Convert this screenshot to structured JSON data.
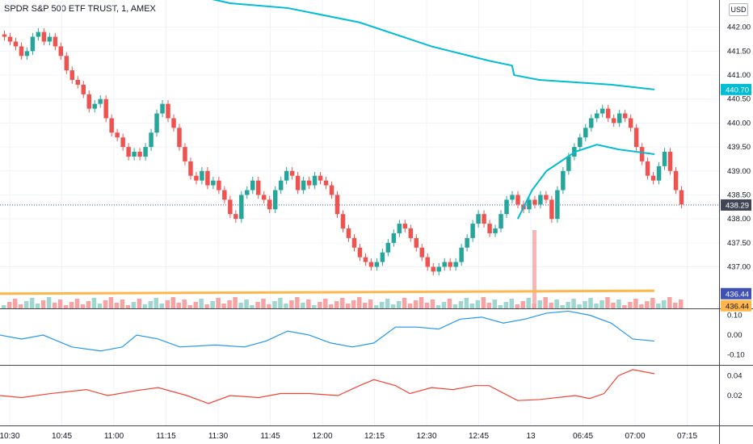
{
  "header": {
    "title": "SPDR S&P 500 ETF TRUST, 1, AMEX",
    "currency": "USD"
  },
  "colors": {
    "up": "#26a69a",
    "down": "#ef5350",
    "volume_up": "#9fd6cf",
    "volume_down": "#f5a3a3",
    "ma": "#00bcd4",
    "support": "#ffb74d",
    "osc1": "#2196f3",
    "osc2": "#f44336",
    "last_price_line": "#3f51b5"
  },
  "chart_data": {
    "type": "candlestick",
    "x_axis": {
      "labels": [
        "10:30",
        "10:45",
        "11:00",
        "11:15",
        "11:30",
        "11:45",
        "12:00",
        "12:15",
        "12:30",
        "12:45",
        "13",
        "06:45",
        "07:00",
        "07:15"
      ]
    },
    "price_axis": {
      "ticks": [
        "437.00",
        "437.50",
        "438.00",
        "438.50",
        "439.00",
        "439.50",
        "440.00",
        "440.50",
        "441.00",
        "441.50",
        "442.00"
      ],
      "range": [
        436.2,
        442.5
      ]
    },
    "price_labels": {
      "ma_value": "440.70",
      "last_price": "438.29",
      "support_a": "436.44",
      "support_b": "436.44"
    },
    "candles_close": [
      441.8,
      441.7,
      441.6,
      441.4,
      441.5,
      441.8,
      441.9,
      441.7,
      441.8,
      441.6,
      441.4,
      441.1,
      440.9,
      440.8,
      440.6,
      440.3,
      440.4,
      440.5,
      440.1,
      439.8,
      439.7,
      439.5,
      439.3,
      439.4,
      439.3,
      439.5,
      439.8,
      440.2,
      440.4,
      440.1,
      439.9,
      439.5,
      439.2,
      438.9,
      438.8,
      439.0,
      438.7,
      438.8,
      438.6,
      438.4,
      438.1,
      438.0,
      438.5,
      438.6,
      438.8,
      438.5,
      438.4,
      438.2,
      438.6,
      438.8,
      439.0,
      438.9,
      438.6,
      438.8,
      438.7,
      438.9,
      438.8,
      438.7,
      438.5,
      438.1,
      437.8,
      437.6,
      437.4,
      437.2,
      437.1,
      437.0,
      437.1,
      437.3,
      437.5,
      437.7,
      437.9,
      437.8,
      437.6,
      437.4,
      437.2,
      437.0,
      436.9,
      437.0,
      437.1,
      437.0,
      437.1,
      437.4,
      437.6,
      437.9,
      438.1,
      437.9,
      437.7,
      437.8,
      438.1,
      438.4,
      438.5,
      438.3,
      438.2,
      438.4,
      438.3,
      438.5,
      438.4,
      438.0,
      438.6,
      439.0,
      439.3,
      439.5,
      439.7,
      439.9,
      440.1,
      440.2,
      440.3,
      440.1,
      440.0,
      440.2,
      440.1,
      439.9,
      439.5,
      439.2,
      438.9,
      438.8,
      439.1,
      439.4,
      439.0,
      438.6,
      438.3
    ],
    "ma_line": [
      [
        0.29,
        442.6
      ],
      [
        0.32,
        442.5
      ],
      [
        0.4,
        442.4
      ],
      [
        0.5,
        442.1
      ],
      [
        0.6,
        441.6
      ],
      [
        0.68,
        441.3
      ],
      [
        0.712,
        441.2
      ],
      [
        0.715,
        441.0
      ],
      [
        0.75,
        440.9
      ],
      [
        0.85,
        440.8
      ],
      [
        0.91,
        440.7
      ]
    ],
    "ma_short": [
      [
        0.72,
        438.0
      ],
      [
        0.74,
        438.6
      ],
      [
        0.76,
        439.0
      ],
      [
        0.8,
        439.4
      ],
      [
        0.83,
        439.55
      ],
      [
        0.86,
        439.45
      ],
      [
        0.91,
        439.35
      ]
    ],
    "support_line": [
      [
        0.0,
        436.44
      ],
      [
        0.91,
        436.5
      ]
    ],
    "last_price_level": 438.29,
    "osc1_axis": {
      "ticks": [
        "0.10",
        "0.00",
        "-0.10"
      ],
      "range": [
        -0.15,
        0.13
      ]
    },
    "osc1": [
      [
        0,
        0.0
      ],
      [
        0.03,
        -0.02
      ],
      [
        0.06,
        0.0
      ],
      [
        0.1,
        -0.06
      ],
      [
        0.14,
        -0.08
      ],
      [
        0.17,
        -0.06
      ],
      [
        0.19,
        0.0
      ],
      [
        0.22,
        -0.02
      ],
      [
        0.25,
        -0.06
      ],
      [
        0.3,
        -0.05
      ],
      [
        0.34,
        -0.06
      ],
      [
        0.37,
        -0.03
      ],
      [
        0.4,
        0.02
      ],
      [
        0.43,
        0.0
      ],
      [
        0.46,
        -0.04
      ],
      [
        0.49,
        -0.06
      ],
      [
        0.52,
        -0.04
      ],
      [
        0.55,
        0.04
      ],
      [
        0.58,
        0.04
      ],
      [
        0.61,
        0.03
      ],
      [
        0.64,
        0.08
      ],
      [
        0.67,
        0.09
      ],
      [
        0.7,
        0.06
      ],
      [
        0.73,
        0.08
      ],
      [
        0.76,
        0.11
      ],
      [
        0.79,
        0.12
      ],
      [
        0.82,
        0.1
      ],
      [
        0.85,
        0.06
      ],
      [
        0.88,
        -0.02
      ],
      [
        0.91,
        -0.03
      ]
    ],
    "osc2_axis": {
      "ticks": [
        "0.04",
        "0.02"
      ],
      "range": [
        -0.01,
        0.05
      ]
    },
    "osc2": [
      [
        0,
        0.02
      ],
      [
        0.03,
        0.018
      ],
      [
        0.07,
        0.022
      ],
      [
        0.12,
        0.026
      ],
      [
        0.15,
        0.02
      ],
      [
        0.19,
        0.025
      ],
      [
        0.22,
        0.028
      ],
      [
        0.26,
        0.02
      ],
      [
        0.29,
        0.012
      ],
      [
        0.32,
        0.02
      ],
      [
        0.36,
        0.018
      ],
      [
        0.39,
        0.022
      ],
      [
        0.43,
        0.022
      ],
      [
        0.47,
        0.02
      ],
      [
        0.5,
        0.03
      ],
      [
        0.52,
        0.036
      ],
      [
        0.55,
        0.03
      ],
      [
        0.57,
        0.022
      ],
      [
        0.6,
        0.028
      ],
      [
        0.63,
        0.026
      ],
      [
        0.66,
        0.03
      ],
      [
        0.68,
        0.03
      ],
      [
        0.72,
        0.015
      ],
      [
        0.75,
        0.016
      ],
      [
        0.8,
        0.02
      ],
      [
        0.82,
        0.017
      ],
      [
        0.84,
        0.022
      ],
      [
        0.86,
        0.04
      ],
      [
        0.88,
        0.046
      ],
      [
        0.91,
        0.042
      ]
    ]
  }
}
